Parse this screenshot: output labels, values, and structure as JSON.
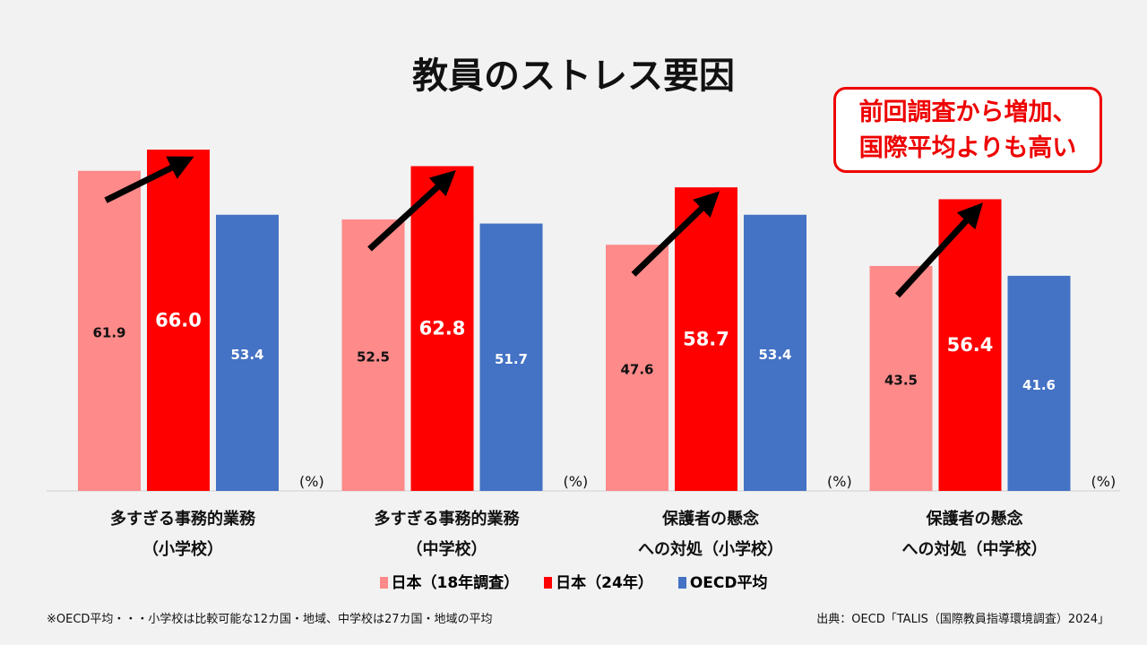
{
  "callout": {
    "line1": "前回調査から増加、",
    "line2": "国際平均よりも高い"
  },
  "chart_data": {
    "type": "bar",
    "title": "教員のストレス要因",
    "categories": [
      [
        "多すぎる事務的業務",
        "（小学校）"
      ],
      [
        "多すぎる事務的業務",
        "（中学校）"
      ],
      [
        "保護者の懸念",
        "への対処（小学校）"
      ],
      [
        "保護者の懸念",
        "への対処（中学校）"
      ]
    ],
    "series": [
      {
        "name": "日本（18年調査）",
        "color": "#ff8a8a",
        "label_color": "#111111",
        "values": [
          61.9,
          52.5,
          47.6,
          43.5
        ]
      },
      {
        "name": "日本（24年）",
        "color": "#ff0000",
        "label_color": "#ffffff",
        "values": [
          66.0,
          62.8,
          58.7,
          56.4
        ]
      },
      {
        "name": "OECD平均",
        "color": "#4472c4",
        "label_color": "#ffffff",
        "values": [
          53.4,
          51.7,
          53.4,
          41.6
        ]
      }
    ],
    "unit": "(%)",
    "ylim": [
      0,
      70
    ],
    "legend": "bottom"
  },
  "footnote": "※OECD平均・・・小学校は比較可能な12カ国・地域、中学校は27カ国・地域の平均",
  "source": "出典：OECD「TALIS（国際教員指導環境調査）2024」"
}
